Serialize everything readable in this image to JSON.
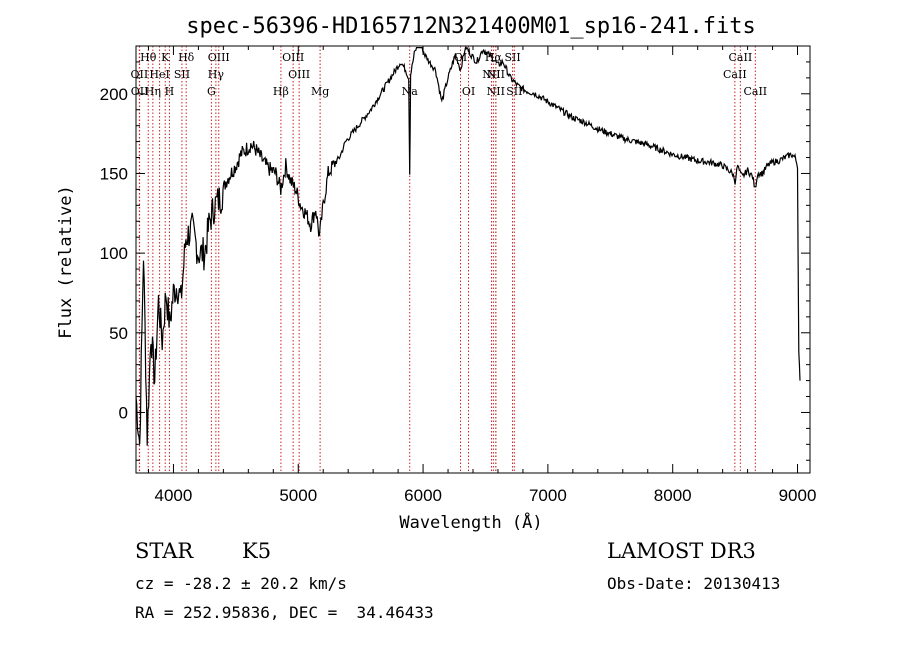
{
  "chart_data": {
    "type": "line",
    "title": "spec-56396-HD165712N321400M01_sp16-241.fits",
    "xlabel": "Wavelength (Å)",
    "ylabel": "Flux (relative)",
    "xlim": [
      3700,
      9100
    ],
    "ylim": [
      -38,
      230
    ],
    "xticks": [
      4000,
      5000,
      6000,
      7000,
      8000,
      9000
    ],
    "yticks": [
      0,
      50,
      100,
      150,
      200
    ],
    "series": [
      {
        "name": "spectrum",
        "x": [
          3700,
          3730,
          3760,
          3790,
          3820,
          3850,
          3880,
          3910,
          3940,
          3970,
          4000,
          4030,
          4060,
          4100,
          4150,
          4200,
          4250,
          4290,
          4330,
          4380,
          4420,
          4460,
          4500,
          4540,
          4580,
          4620,
          4660,
          4700,
          4740,
          4780,
          4820,
          4860,
          4900,
          4940,
          4980,
          5020,
          5060,
          5100,
          5140,
          5170,
          5200,
          5240,
          5280,
          5330,
          5380,
          5430,
          5480,
          5530,
          5580,
          5620,
          5660,
          5700,
          5740,
          5780,
          5820,
          5860,
          5885,
          5893,
          5900,
          5930,
          5970,
          6010,
          6050,
          6100,
          6150,
          6200,
          6260,
          6300,
          6340,
          6380,
          6430,
          6480,
          6520,
          6563,
          6600,
          6640,
          6700,
          6760,
          6820,
          6900,
          7000,
          7100,
          7200,
          7300,
          7400,
          7500,
          7600,
          7700,
          7800,
          7900,
          8000,
          8100,
          8200,
          8300,
          8400,
          8480,
          8500,
          8520,
          8540,
          8560,
          8600,
          8640,
          8660,
          8680,
          8720,
          8760,
          8800,
          8850,
          8900,
          8950,
          8980,
          9000,
          9010,
          9020
        ],
        "values": [
          10,
          -20,
          100,
          -15,
          50,
          20,
          70,
          45,
          75,
          55,
          75,
          80,
          70,
          110,
          115,
          100,
          100,
          120,
          130,
          135,
          145,
          150,
          155,
          162,
          165,
          168,
          165,
          160,
          155,
          152,
          150,
          140,
          155,
          145,
          140,
          130,
          125,
          118,
          128,
          110,
          130,
          150,
          155,
          160,
          170,
          175,
          180,
          185,
          190,
          195,
          200,
          205,
          210,
          215,
          220,
          215,
          210,
          150,
          212,
          225,
          235,
          225,
          220,
          215,
          195,
          210,
          225,
          215,
          230,
          225,
          220,
          228,
          225,
          222,
          218,
          220,
          210,
          205,
          202,
          200,
          195,
          190,
          185,
          182,
          178,
          175,
          172,
          170,
          168,
          165,
          162,
          160,
          158,
          157,
          155,
          150,
          145,
          155,
          150,
          148,
          152,
          148,
          140,
          150,
          150,
          155,
          157,
          158,
          160,
          162,
          160,
          155,
          40,
          20
        ]
      }
    ],
    "spectral_lines": [
      {
        "label": "Hθ",
        "row": 0,
        "x": 3798
      },
      {
        "label": "K",
        "row": 0,
        "x": 3934
      },
      {
        "label": "Hδ",
        "row": 0,
        "x": 4102
      },
      {
        "label": "OIII",
        "row": 0,
        "x": 4363
      },
      {
        "label": "OIII",
        "row": 0,
        "x": 4959
      },
      {
        "label": "OI",
        "row": 0,
        "x": 6300
      },
      {
        "label": "Hα",
        "row": 0,
        "x": 6563
      },
      {
        "label": "SII",
        "row": 0,
        "x": 6717
      },
      {
        "label": "CaII",
        "row": 0,
        "x": 8542
      },
      {
        "label": "OII",
        "row": 1,
        "x": 3727
      },
      {
        "label": "HeI",
        "row": 1,
        "x": 3889
      },
      {
        "label": "SII",
        "row": 1,
        "x": 4068
      },
      {
        "label": "Hγ",
        "row": 1,
        "x": 4340
      },
      {
        "label": "OIII",
        "row": 1,
        "x": 5007
      },
      {
        "label": "NII",
        "row": 1,
        "x": 6548
      },
      {
        "label": "NII",
        "row": 1,
        "x": 6583
      },
      {
        "label": "CaII",
        "row": 1,
        "x": 8498
      },
      {
        "label": "OII",
        "row": 2,
        "x": 3729
      },
      {
        "label": "Hη",
        "row": 2,
        "x": 3835
      },
      {
        "label": "H",
        "row": 2,
        "x": 3968
      },
      {
        "label": "G",
        "row": 2,
        "x": 4304
      },
      {
        "label": "Hβ",
        "row": 2,
        "x": 4861
      },
      {
        "label": "Mg",
        "row": 2,
        "x": 5175
      },
      {
        "label": "Na",
        "row": 2,
        "x": 5893
      },
      {
        "label": "OI",
        "row": 2,
        "x": 6364
      },
      {
        "label": "NII",
        "row": 2,
        "x": 6583
      },
      {
        "label": "SII",
        "row": 2,
        "x": 6731
      },
      {
        "label": "CaII",
        "row": 2,
        "x": 8662
      }
    ]
  },
  "info": {
    "object_type": "STAR",
    "subclass": "K5",
    "survey": "LAMOST DR3",
    "cz": "cz = -28.2 ± 20.2 km/s",
    "obs_date": "Obs-Date: 20130413",
    "coords": "RA = 252.95836, DEC =  34.46433"
  },
  "colors": {
    "line": "#000000",
    "marker": "#cc2222"
  }
}
